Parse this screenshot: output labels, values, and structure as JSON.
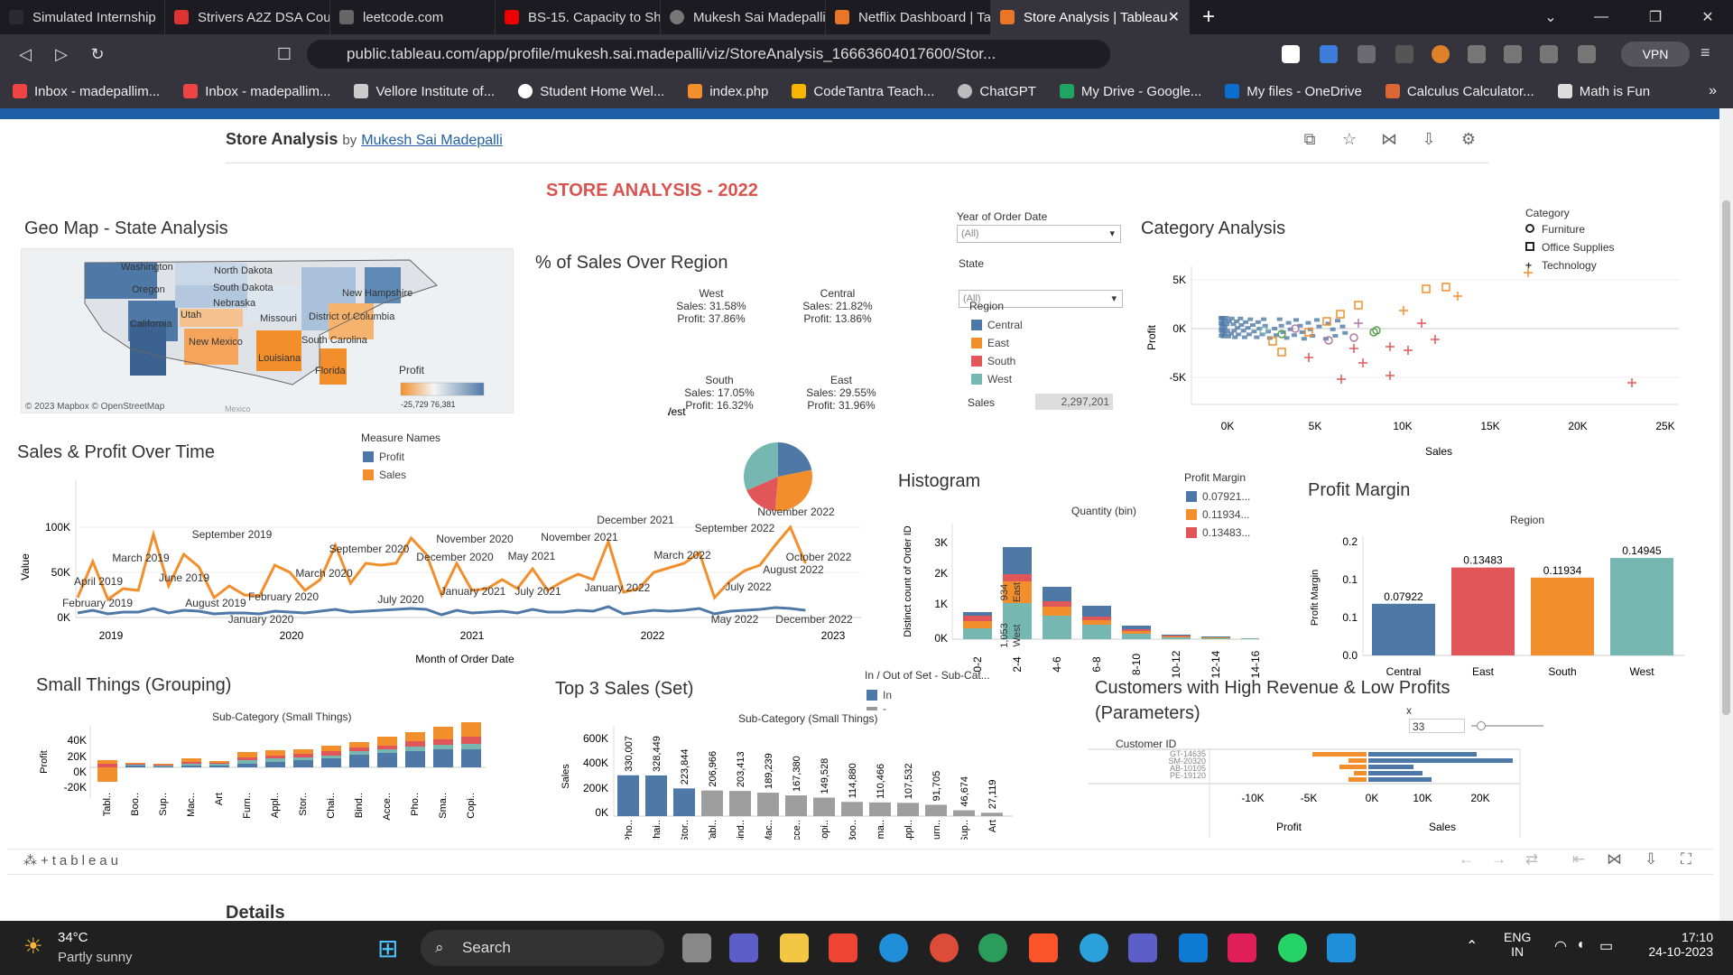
{
  "browser": {
    "tabs": [
      {
        "label": "Simulated Internship",
        "color": "#1c1b22"
      },
      {
        "label": "Strivers A2Z DSA Course/Sh",
        "color": "#d33"
      },
      {
        "label": "leetcode.com",
        "color": "#555"
      },
      {
        "label": "BS-15. Capacity to Ship Pac",
        "color": "#e00"
      },
      {
        "label": "Mukesh Sai Madepalli",
        "color": "#777"
      },
      {
        "label": "Netflix Dashboard | Tableau",
        "color": "#e97627"
      },
      {
        "label": "Store Analysis | Tableau",
        "color": "#e97627"
      }
    ],
    "url": "public.tableau.com/app/profile/mukesh.sai.madepalli/viz/StoreAnalysis_16663604017600/Stor...",
    "vpn": "VPN",
    "bookmarks": [
      "Inbox - madepallim...",
      "Inbox - madepallim...",
      "Vellore Institute of...",
      "Student Home Wel...",
      "index.php",
      "CodeTantra Teach...",
      "ChatGPT",
      "My Drive - Google...",
      "My files - OneDrive",
      "Calculus Calculator...",
      "Math is Fun"
    ]
  },
  "viz": {
    "title": "Store Analysis",
    "by": "by",
    "author": "Mukesh Sai Madepalli",
    "dashboard_title": "STORE ANALYSIS - 2022",
    "tableau_logo": "+tableau",
    "details": "Details"
  },
  "geo": {
    "title": "Geo Map - State Analysis",
    "states": [
      "Washington",
      "North Dakota",
      "Oregon",
      "South Dakota",
      "New Hampshire",
      "Nebraska",
      "Utah",
      "Missouri",
      "District of Columbia",
      "California",
      "New Mexico",
      "South Carolina",
      "Louisiana",
      "Florida",
      "Mexico"
    ],
    "legend_title": "Profit",
    "legend_range": "-25,729   76,381",
    "attribution": "© 2023 Mapbox  © OpenStreetMap"
  },
  "pie": {
    "title": "% of Sales Over Region",
    "slices": [
      {
        "region": "West",
        "sales": "Sales: 31.58%",
        "profit": "Profit: 37.86%",
        "value": 31.58,
        "color": "#76b7b2"
      },
      {
        "region": "Central",
        "sales": "Sales: 21.82%",
        "profit": "Profit: 13.86%",
        "value": 21.82,
        "color": "#4e79a7"
      },
      {
        "region": "East",
        "sales": "Sales: 29.55%",
        "profit": "Profit: 31.96%",
        "value": 29.55,
        "color": "#f28e2b"
      },
      {
        "region": "South",
        "sales": "Sales: 17.05%",
        "profit": "Profit: 16.32%",
        "value": 17.05,
        "color": "#e15759"
      }
    ]
  },
  "filters": {
    "year_label": "Year of Order Date",
    "year_value": "(All)",
    "state_label": "State",
    "state_value": "(All)",
    "region_label": "Region",
    "regions": [
      {
        "name": "Central",
        "color": "#4e79a7"
      },
      {
        "name": "East",
        "color": "#f28e2b"
      },
      {
        "name": "South",
        "color": "#e15759"
      },
      {
        "name": "West",
        "color": "#76b7b2"
      }
    ],
    "sales_label": "Sales",
    "sales_value": "2,297,201"
  },
  "category": {
    "title": "Category Analysis",
    "legend_title": "Category",
    "legend": [
      "Furniture",
      "Office Supplies",
      "Technology"
    ],
    "yticks": [
      "5K",
      "0K",
      "-5K"
    ],
    "xticks": [
      "0K",
      "5K",
      "10K",
      "15K",
      "20K",
      "25K"
    ],
    "ylabel": "Profit",
    "xlabel": "Sales"
  },
  "time": {
    "title": "Sales & Profit Over Time",
    "legend_title": "Measure Names",
    "legend": [
      {
        "name": "Profit",
        "color": "#4e79a7"
      },
      {
        "name": "Sales",
        "color": "#f28e2b"
      }
    ],
    "yticks": [
      "100K",
      "50K",
      "0K"
    ],
    "ylabel": "Value",
    "xticks": [
      "2019",
      "2020",
      "2021",
      "2022",
      "2023"
    ],
    "xlabel": "Month of Order Date",
    "annotations": [
      "September 2019",
      "March 2019",
      "April 2019",
      "June 2019",
      "February 2019",
      "August 2019",
      "January 2020",
      "February 2020",
      "March 2020",
      "September 2020",
      "July 2020",
      "December 2020",
      "November 2020",
      "January 2021",
      "July 2021",
      "May 2021",
      "November 2021",
      "December 2021",
      "January 2022",
      "March 2022",
      "September 2022",
      "July 2022",
      "August 2022",
      "November 2022",
      "October 2022",
      "May 2022",
      "December 2022"
    ]
  },
  "histogram": {
    "title": "Histogram",
    "subtitle": "Quantity (bin)",
    "ylabel": "Distinct count of Order ID",
    "yticks": [
      "3K",
      "2K",
      "1K",
      "0K"
    ],
    "bins": [
      "0-2",
      "2-4",
      "4-6",
      "6-8",
      "8-10",
      "10-12",
      "12-14",
      "14-16"
    ],
    "bar_labels": [
      "934",
      "East",
      "1,053",
      "West"
    ],
    "legend_title": "Profit Margin",
    "legend": [
      {
        "name": "0.07921...",
        "color": "#4e79a7"
      },
      {
        "name": "0.11934...",
        "color": "#f28e2b"
      },
      {
        "name": "0.13483...",
        "color": "#e15759"
      }
    ]
  },
  "margin": {
    "title": "Profit Margin",
    "subtitle": "Region",
    "ylabel": "Profit Margin",
    "yticks": [
      "0.2",
      "0.1",
      "0.1",
      "0.0"
    ],
    "bars": [
      {
        "region": "Central",
        "value": 0.07922,
        "label": "0.07922",
        "color": "#4e79a7"
      },
      {
        "region": "East",
        "value": 0.13483,
        "label": "0.13483",
        "color": "#e15759"
      },
      {
        "region": "South",
        "value": 0.11934,
        "label": "0.11934",
        "color": "#f28e2b"
      },
      {
        "region": "West",
        "value": 0.14945,
        "label": "0.14945",
        "color": "#76b7b2"
      }
    ]
  },
  "small": {
    "title": "Small Things (Grouping)",
    "subtitle": "Sub-Category (Small Things)",
    "ylabel": "Profit",
    "yticks": [
      "40K",
      "20K",
      "0K",
      "-20K"
    ],
    "cats": [
      "Tabl..",
      "Boo..",
      "Sup..",
      "Mac..",
      "Art",
      "Furn..",
      "Appl..",
      "Stor..",
      "Chai..",
      "Bind..",
      "Acce..",
      "Pho..",
      "Sma..",
      "Copi.."
    ]
  },
  "top3": {
    "title": "Top 3 Sales (Set)",
    "subtitle": "Sub-Category (Small Things)",
    "ylabel": "Sales",
    "legend_title": "In / Out of Set - Sub-Cat...",
    "legend": [
      "In",
      "-"
    ],
    "yticks": [
      "600K",
      "400K",
      "200K",
      "0K"
    ],
    "bars": [
      {
        "cat": "Pho..",
        "label": "330,007",
        "value": 330007,
        "in": true
      },
      {
        "cat": "Chai..",
        "label": "328,449",
        "value": 328449,
        "in": true
      },
      {
        "cat": "Stor..",
        "label": "223,844",
        "value": 223844,
        "in": true
      },
      {
        "cat": "Tabl..",
        "label": "206,966",
        "value": 206966,
        "in": false
      },
      {
        "cat": "Bind..",
        "label": "203,413",
        "value": 203413,
        "in": false
      },
      {
        "cat": "Mac..",
        "label": "189,239",
        "value": 189239,
        "in": false
      },
      {
        "cat": "Acce..",
        "label": "167,380",
        "value": 167380,
        "in": false
      },
      {
        "cat": "Copi..",
        "label": "149,528",
        "value": 149528,
        "in": false
      },
      {
        "cat": "Boo..",
        "label": "114,880",
        "value": 114880,
        "in": false
      },
      {
        "cat": "Sma..",
        "label": "110,466",
        "value": 110466,
        "in": false
      },
      {
        "cat": "Appl..",
        "label": "107,532",
        "value": 107532,
        "in": false
      },
      {
        "cat": "Furn..",
        "label": "91,705",
        "value": 91705,
        "in": false
      },
      {
        "cat": "Sup..",
        "label": "46,674",
        "value": 46674,
        "in": false
      },
      {
        "cat": "Art",
        "label": "27,119",
        "value": 27119,
        "in": false
      }
    ]
  },
  "customers": {
    "title": "Customers with High Revenue & Low Profits (Parameters)",
    "param_label": "x",
    "param_value": "33",
    "col_label": "Customer ID",
    "ids": [
      "GT-14635",
      "SM-20320",
      "AB-10105",
      "PE-19120"
    ],
    "xticks_profit": [
      "-10K",
      "-5K"
    ],
    "xticks_sales": [
      "0K",
      "10K",
      "20K"
    ],
    "profit_label": "Profit",
    "sales_label": "Sales"
  },
  "taskbar": {
    "temp": "34°C",
    "weather": "Partly sunny",
    "search": "Search",
    "lang1": "ENG",
    "lang2": "IN",
    "time": "17:10",
    "date": "24-10-2023"
  }
}
